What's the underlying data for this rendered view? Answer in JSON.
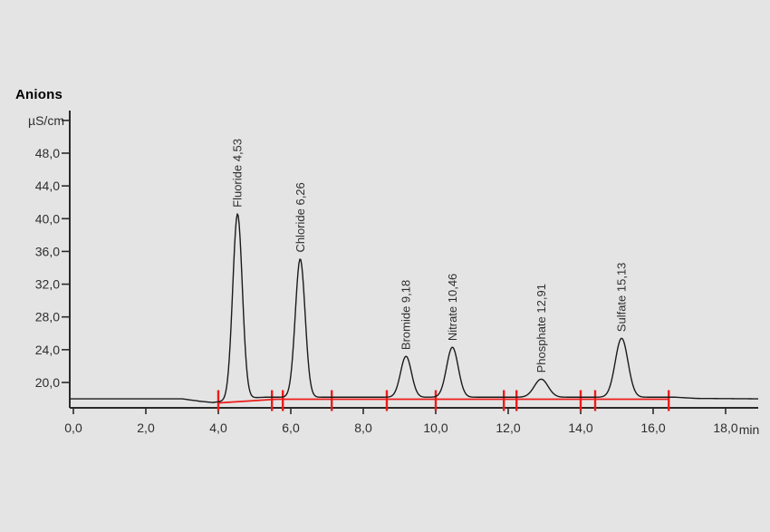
{
  "window": {
    "background_color": "#e4e4e4"
  },
  "chart_data": {
    "type": "line",
    "title": "Anions",
    "colors": {
      "signal": "#1b1b1b",
      "axis": "#2a2a2a",
      "text": "#2e2e2e",
      "integration": "#ed1c1a"
    },
    "y_axis": {
      "unit_label": "µS/cm",
      "unit_tick_v": 52,
      "range": [
        16.9,
        53.2
      ],
      "ticks": [
        {
          "v": 48,
          "label": "48,0"
        },
        {
          "v": 44,
          "label": "44,0"
        },
        {
          "v": 40,
          "label": "40,0"
        },
        {
          "v": 36,
          "label": "36,0"
        },
        {
          "v": 32,
          "label": "32,0"
        },
        {
          "v": 28,
          "label": "28,0"
        },
        {
          "v": 24,
          "label": "24,0"
        },
        {
          "v": 20,
          "label": "20,0"
        }
      ]
    },
    "x_axis": {
      "unit_label": "min",
      "range": [
        -0.1,
        18.9
      ],
      "ticks": [
        {
          "v": 0,
          "label": "0,0"
        },
        {
          "v": 2,
          "label": "2,0"
        },
        {
          "v": 4,
          "label": "4,0"
        },
        {
          "v": 6,
          "label": "6,0"
        },
        {
          "v": 8,
          "label": "8,0"
        },
        {
          "v": 10,
          "label": "10,0"
        },
        {
          "v": 12,
          "label": "12,0"
        },
        {
          "v": 14,
          "label": "14,0"
        },
        {
          "v": 16,
          "label": "16,0"
        },
        {
          "v": 18,
          "label": "18,0"
        }
      ]
    },
    "baseline_uS_points": [
      [
        0.0,
        18.0
      ],
      [
        3.0,
        18.0
      ],
      [
        3.5,
        17.7
      ],
      [
        3.85,
        17.55
      ],
      [
        4.2,
        17.75
      ],
      [
        4.8,
        18.1
      ],
      [
        5.3,
        18.2
      ],
      [
        16.6,
        18.2
      ],
      [
        17.2,
        18.05
      ],
      [
        18.9,
        18.0
      ]
    ],
    "peaks": [
      {
        "name": "Fluoride",
        "rt_label": "4,53",
        "label": "Fluoride 4,53",
        "time_min": 4.53,
        "apex_uS": 40.6,
        "sigma_min": 0.132
      },
      {
        "name": "Chloride",
        "rt_label": "6,26",
        "label": "Chloride 6,26",
        "time_min": 6.26,
        "apex_uS": 35.1,
        "sigma_min": 0.135
      },
      {
        "name": "Bromide",
        "rt_label": "9,18",
        "label": "Bromide 9,18",
        "time_min": 9.18,
        "apex_uS": 23.2,
        "sigma_min": 0.15
      },
      {
        "name": "Nitrate",
        "rt_label": "10,46",
        "label": "Nitrate 10,46",
        "time_min": 10.46,
        "apex_uS": 24.3,
        "sigma_min": 0.16
      },
      {
        "name": "Phosphate",
        "rt_label": "12,91",
        "label": "Phosphate 12,91",
        "time_min": 12.91,
        "apex_uS": 20.4,
        "sigma_min": 0.19
      },
      {
        "name": "Sulfate",
        "rt_label": "15,13",
        "label": "Sulfate 15,13",
        "time_min": 15.13,
        "apex_uS": 25.4,
        "sigma_min": 0.175
      }
    ],
    "integration": {
      "baseline_points_min_uS": [
        [
          4.0,
          17.5
        ],
        [
          5.6,
          17.95
        ],
        [
          16.43,
          17.95
        ]
      ],
      "marks_min": [
        4.0,
        5.48,
        5.78,
        7.13,
        8.65,
        10.0,
        11.88,
        12.23,
        14.0,
        14.4,
        16.43
      ]
    }
  }
}
